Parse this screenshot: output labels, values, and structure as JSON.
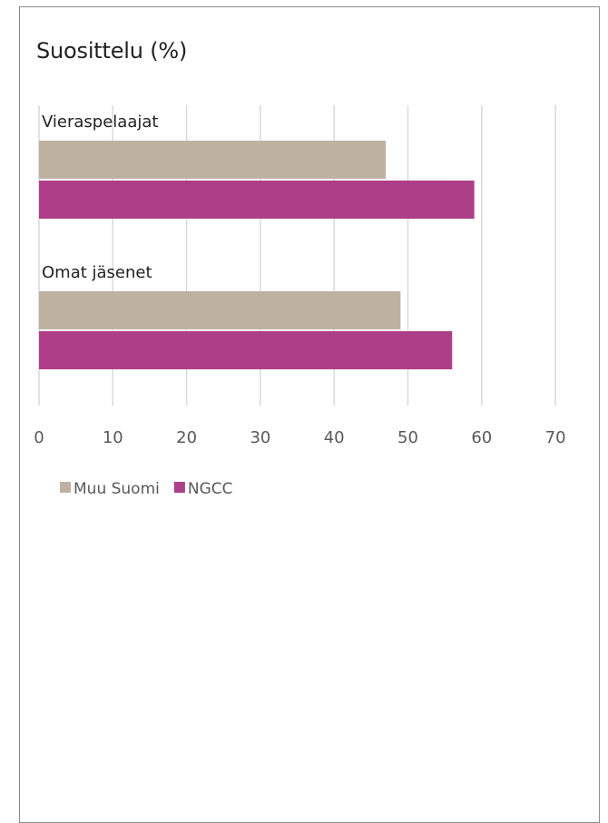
{
  "chart_data": {
    "type": "bar",
    "orientation": "horizontal",
    "title": "Suosittelu (%)",
    "categories": [
      "Vieraspelaajat",
      "Omat jäsenet"
    ],
    "series": [
      {
        "name": "Muu Suomi",
        "values": [
          47,
          49
        ],
        "color": "#bfb1a2"
      },
      {
        "name": "NGCC",
        "values": [
          59,
          56
        ],
        "color": "#ae3e88"
      }
    ],
    "xlim": [
      0,
      70
    ],
    "xticks": [
      0,
      10,
      20,
      30,
      40,
      50,
      60,
      70
    ],
    "xlabel": "",
    "ylabel": "",
    "grid": true,
    "legend_position": "bottom-left"
  }
}
